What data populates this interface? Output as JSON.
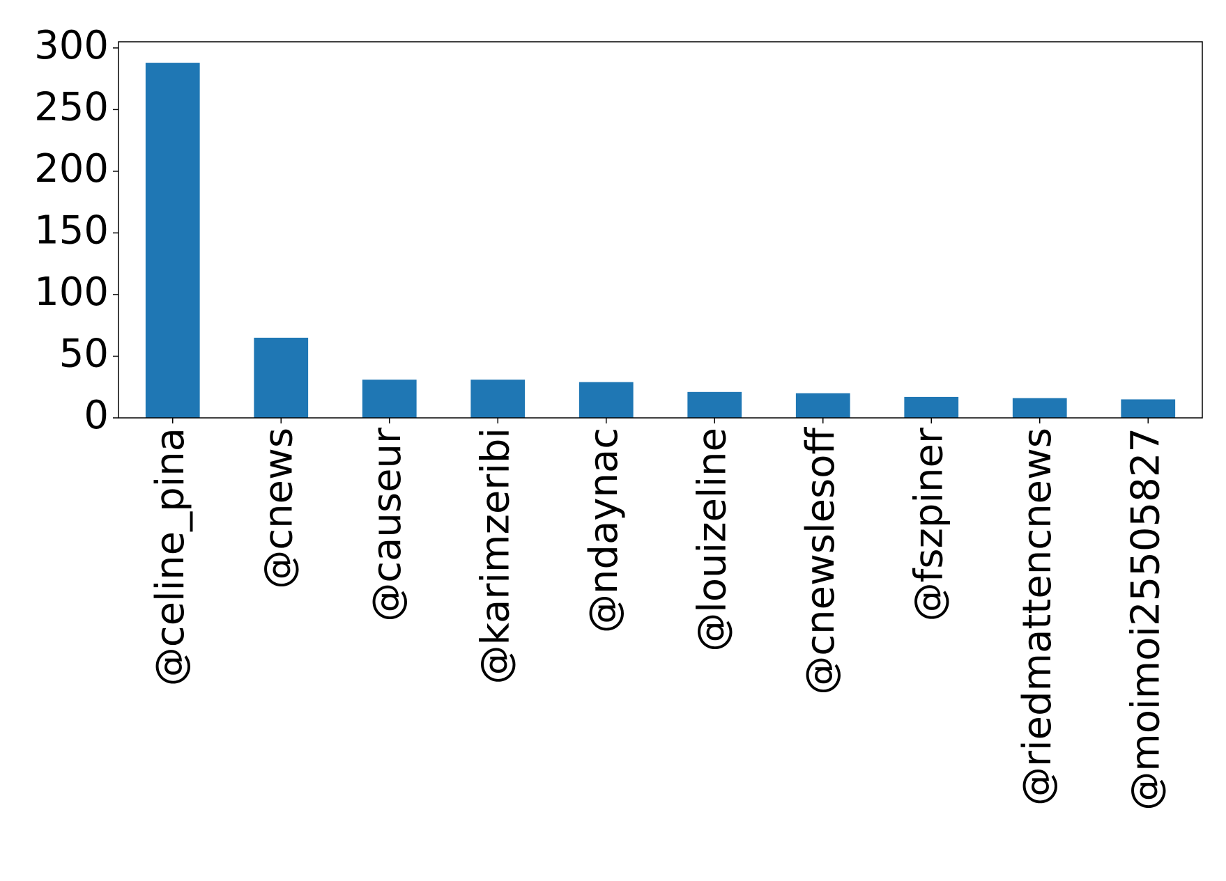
{
  "chart_data": {
    "type": "bar",
    "title": "",
    "xlabel": "",
    "ylabel": "",
    "categories": [
      "@celine_pina",
      "@cnews",
      "@causeur",
      "@karimzeribi",
      "@ndaynac",
      "@louizeline",
      "@cnewslesoff",
      "@fszpiner",
      "@riedmattencnews",
      "@moimoi25505827"
    ],
    "values": [
      288,
      65,
      31,
      31,
      29,
      21,
      20,
      17,
      16,
      15
    ],
    "ylim": [
      0,
      305
    ],
    "yticks": [
      0,
      50,
      100,
      150,
      200,
      250,
      300
    ],
    "ytick_labels": [
      "0",
      "50",
      "100",
      "150",
      "200",
      "250",
      "300"
    ],
    "bar_color": "#1f77b4",
    "grid": false,
    "legend": "none"
  }
}
